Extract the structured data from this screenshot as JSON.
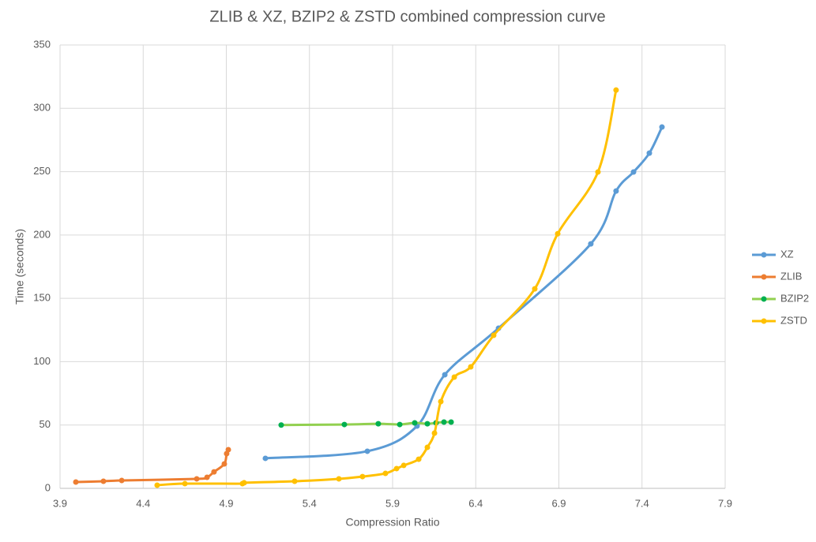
{
  "chart_data": {
    "type": "scatter-smooth",
    "title": "ZLIB & XZ, BZIP2  & ZSTD combined compression curve",
    "x_label": "Compression Ratio",
    "y_label": "Time (seconds)",
    "xlim": [
      3.9,
      7.9
    ],
    "xticks": [
      3.9,
      4.4,
      4.9,
      5.4,
      5.9,
      6.4,
      6.9,
      7.4,
      7.9
    ],
    "ylim": [
      0,
      350
    ],
    "yticks": [
      0,
      50,
      100,
      150,
      200,
      250,
      300,
      350
    ],
    "grid": true,
    "legend": "right",
    "series": [
      {
        "name": "XZ",
        "color": "#5b9bd5",
        "marker_color": "#5b9bd5",
        "x": [
          5.135,
          5.748,
          6.047,
          6.214,
          6.537,
          7.092,
          7.244,
          7.349,
          7.444,
          7.52
        ],
        "values": [
          23.7,
          29.3,
          49.2,
          89.7,
          126.4,
          193,
          234.7,
          249.7,
          264.6,
          285.2
        ]
      },
      {
        "name": "ZLIB",
        "color": "#ed7d31",
        "marker_color": "#ed7d31",
        "x": [
          3.995,
          4.161,
          4.271,
          4.722,
          4.784,
          4.826,
          4.888,
          4.902,
          4.912
        ],
        "values": [
          5,
          5.6,
          6.2,
          7.5,
          8.7,
          13,
          19.3,
          27.4,
          30.5
        ]
      },
      {
        "name": "BZIP2",
        "color": "#92d050",
        "marker_color": "#00b050",
        "x": [
          5.23,
          5.61,
          5.814,
          5.943,
          6.033,
          6.109,
          6.161,
          6.209,
          6.252
        ],
        "values": [
          50,
          50.4,
          51,
          50.4,
          51.7,
          51,
          51.7,
          52.3,
          52.3
        ]
      },
      {
        "name": "ZSTD",
        "color": "#ffc000",
        "marker_color": "#ffc000",
        "x": [
          4.484,
          4.651,
          4.997,
          5.007,
          5.311,
          5.577,
          5.719,
          5.857,
          5.924,
          5.967,
          6.057,
          6.109,
          6.152,
          6.19,
          6.271,
          6.37,
          6.508,
          6.755,
          6.893,
          7.135,
          7.244
        ],
        "values": [
          2.5,
          3.7,
          3.7,
          4.4,
          5.6,
          7.5,
          9.3,
          11.8,
          15.6,
          18.1,
          23,
          32.4,
          43.6,
          68.5,
          87.8,
          95.9,
          120.8,
          157.5,
          201,
          249.7,
          314.4
        ]
      }
    ]
  }
}
